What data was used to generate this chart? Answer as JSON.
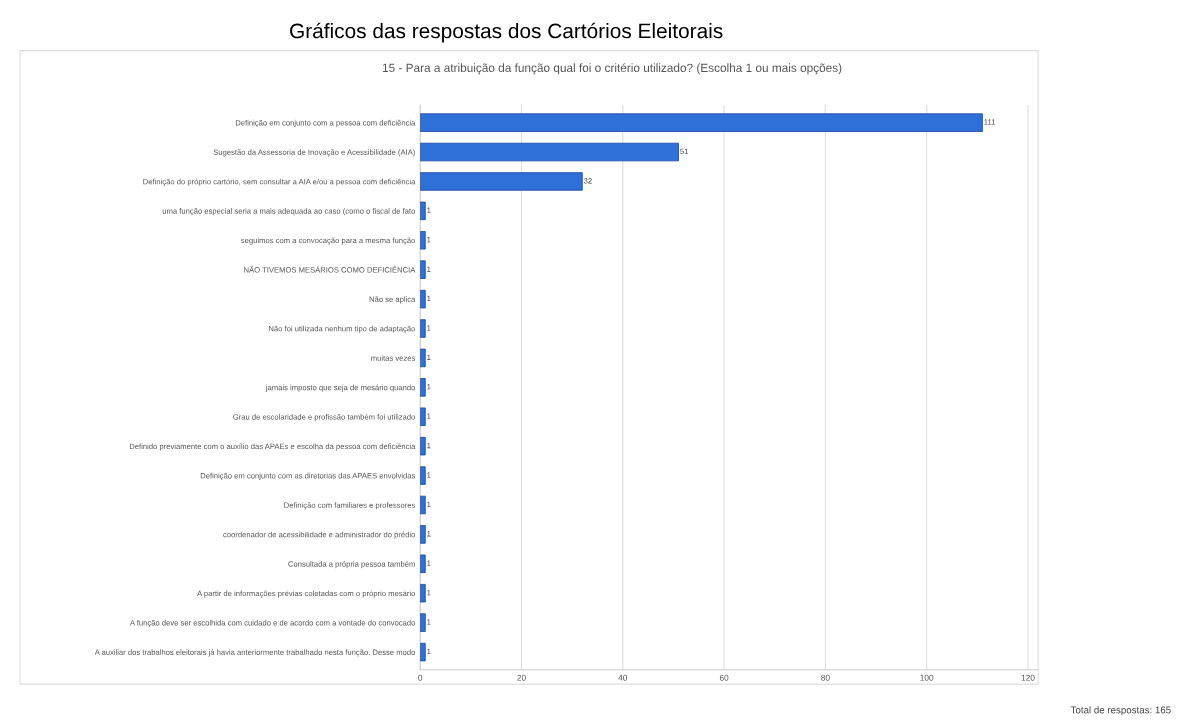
{
  "chart_data": {
    "type": "bar",
    "orientation": "horizontal",
    "title": "Gráficos das respostas dos Cartórios Eleitorais",
    "subtitle": "15 - Para a atribuição da função qual foi o critério utilizado? (Escolha 1 ou mais opções)",
    "categories": [
      "Definição em conjunto com a pessoa com deficiência",
      "Sugestão da Assessoria de Inovação e Acessibilidade (AIA)",
      "Definição do próprio cartório, sem consultar a AIA e/ou a pessoa com deficiência",
      "uma função especial seria a mais adequada ao caso (como o fiscal de fato",
      "seguimos com a convocação para a mesma função",
      "NÃO TIVEMOS MESÁRIOS COMO DEFICIÊNCIA",
      "Não se aplica",
      "Não foi utilizada nenhum tipo de adaptação",
      "muitas vezes",
      "jamais imposto que seja de mesário quando",
      "Grau de escolaridade e profissão também foi utilizado",
      "Definido previamente com o auxílio das APAEs e escolha da pessoa com deficiência",
      "Definição em conjunto com as diretorias das APAES envolvidas",
      "Definição com familiares e professores",
      "coordenador de acessibilidade e administrador do prédio",
      "Consultada a própria pessoa também",
      "A partir de informações prévias coletadas com o próprio mesário",
      "A função deve ser escolhida com cuidado e de acordo com a vontade do convocado",
      "A auxiliar dos trabalhos eleitorais já havia anteriormente trabalhado nesta função. Desse modo"
    ],
    "values": [
      111,
      51,
      32,
      1,
      1,
      1,
      1,
      1,
      1,
      1,
      1,
      1,
      1,
      1,
      1,
      1,
      1,
      1,
      1
    ],
    "color": "#2f6fd8",
    "data_labels": true,
    "xlim": [
      0,
      122
    ],
    "xticks": [
      0,
      20,
      40,
      60,
      80,
      100,
      120
    ],
    "grid": "x",
    "annotations": [
      "Total de respostas: 165"
    ]
  }
}
